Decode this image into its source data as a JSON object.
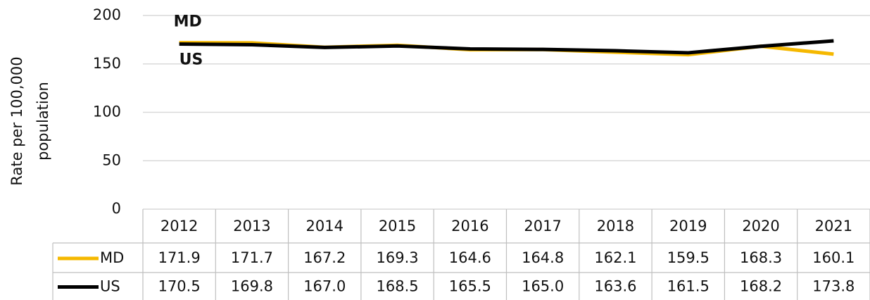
{
  "chart_data": {
    "type": "line",
    "ylabel": [
      "Rate per 100,000",
      "population"
    ],
    "categories": [
      "2012",
      "2013",
      "2014",
      "2015",
      "2016",
      "2017",
      "2018",
      "2019",
      "2020",
      "2021"
    ],
    "series": [
      {
        "name": "MD",
        "color": "#f5b800",
        "values": [
          171.9,
          171.7,
          167.2,
          169.3,
          164.6,
          164.8,
          162.1,
          159.5,
          168.3,
          160.1
        ],
        "value_labels": [
          "171.9",
          "171.7",
          "167.2",
          "169.3",
          "164.6",
          "164.8",
          "162.1",
          "159.5",
          "168.3",
          "160.1"
        ]
      },
      {
        "name": "US",
        "color": "#000000",
        "values": [
          170.5,
          169.8,
          167.0,
          168.5,
          165.5,
          165.0,
          163.6,
          161.5,
          168.2,
          173.8
        ],
        "value_labels": [
          "170.5",
          "169.8",
          "167.0",
          "168.5",
          "165.5",
          "165.0",
          "163.6",
          "161.5",
          "168.2",
          "173.8"
        ]
      }
    ],
    "annotations": [
      {
        "text": "US",
        "series": 1
      },
      {
        "text": "MD",
        "series": 0
      }
    ],
    "ylim": [
      0,
      200
    ],
    "yticks": [
      0,
      50,
      100,
      150,
      200
    ],
    "grid": true
  }
}
